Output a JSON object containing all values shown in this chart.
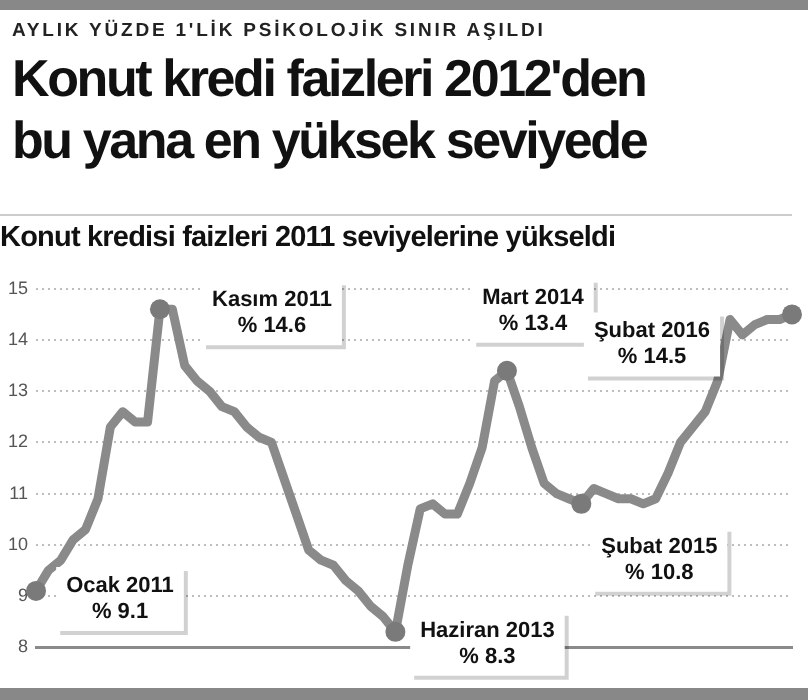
{
  "chart_data": {
    "type": "line",
    "title": "Konut kredi faizleri 2012'den bu yana en yüksek seviyede",
    "subtitle": "Konut kredisi faizleri 2011 seviyelerine yükseldi",
    "categories": [
      null,
      null,
      null,
      null,
      null,
      null,
      null,
      null,
      null,
      null,
      null,
      null,
      null,
      null,
      null,
      null,
      null,
      null,
      null,
      null,
      null,
      null,
      null,
      null,
      null,
      null,
      null,
      null,
      null,
      null,
      null,
      null,
      null,
      null,
      null,
      null,
      null,
      null,
      null,
      null,
      null,
      null,
      null,
      null,
      null,
      null,
      null,
      null,
      null,
      null,
      null,
      null,
      null,
      null,
      null,
      null,
      null,
      null,
      null,
      null,
      null,
      null
    ],
    "series": [
      {
        "color": "#8a8a8a",
        "values": [
          9.1,
          9.5,
          9.7,
          10.1,
          10.3,
          10.9,
          12.3,
          12.6,
          12.4,
          12.4,
          14.6,
          14.6,
          13.5,
          13.2,
          13.0,
          12.7,
          12.6,
          12.3,
          12.1,
          12.0,
          11.3,
          10.6,
          9.9,
          9.7,
          9.6,
          9.3,
          9.1,
          8.8,
          8.6,
          8.3,
          9.6,
          10.7,
          10.8,
          10.6,
          10.6,
          11.2,
          11.9,
          13.2,
          13.4,
          12.7,
          11.9,
          11.2,
          11.0,
          10.9,
          10.8,
          11.1,
          11.0,
          10.9,
          10.9,
          10.8,
          10.9,
          11.4,
          12.0,
          12.3,
          12.6,
          13.2,
          14.4,
          14.1,
          14.3,
          14.4,
          14.4,
          14.5
        ]
      }
    ],
    "ylim": [
      8,
      15
    ],
    "yticks": [
      8,
      9,
      10,
      11,
      12,
      13,
      14,
      15
    ],
    "grid": "y",
    "marker": "none",
    "line_style": "solid",
    "annotations": [
      "AYLIK YÜZDE 1'LİK PSİKOLOJİK SINIR AŞILDI",
      "Ocak 2011\n% 9.1",
      "Kasım 2011\n% 14.6",
      "Haziran 2013\n% 8.3",
      "Mart 2014\n% 13.4",
      "Şubat 2015\n% 10.8",
      "Şubat 2016\n% 14.5"
    ]
  }
}
